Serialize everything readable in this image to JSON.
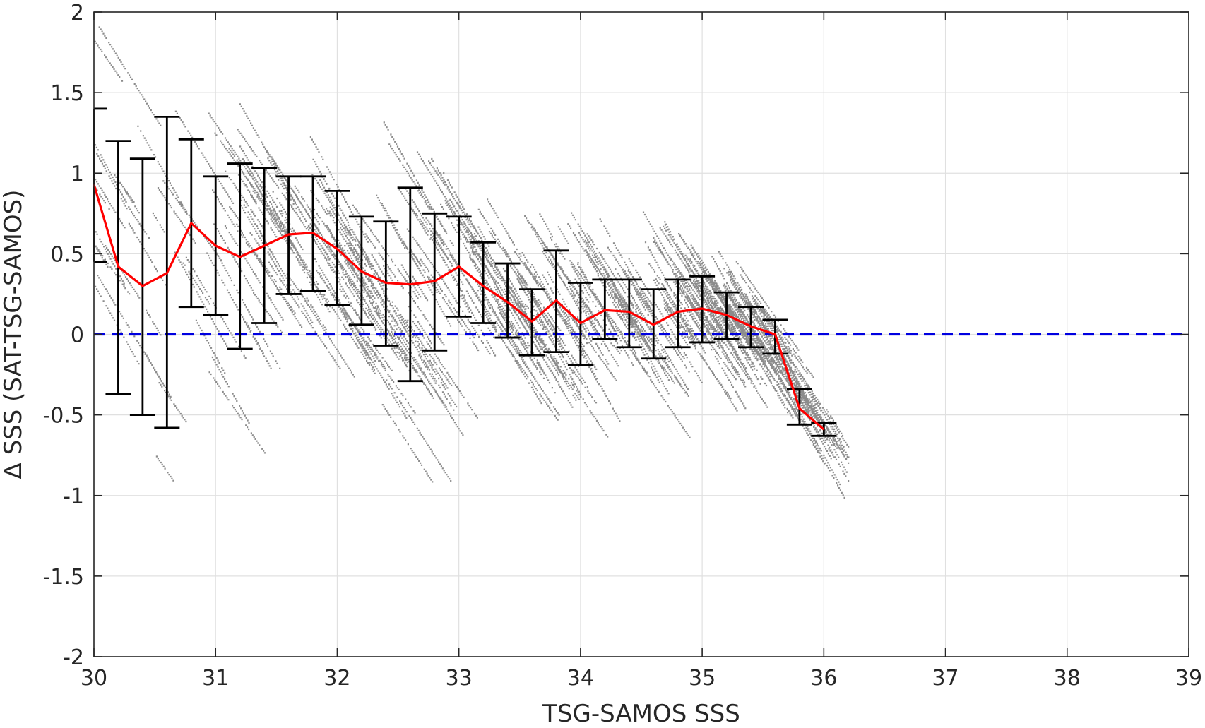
{
  "chart_data": {
    "type": "scatter",
    "title": "",
    "xlabel": "TSG-SAMOS SSS",
    "ylabel": "Δ SSS (SAT-TSG-SAMOS)",
    "xlim": [
      30,
      39
    ],
    "ylim": [
      -2,
      2
    ],
    "x_ticks": [
      30,
      31,
      32,
      33,
      34,
      35,
      36,
      37,
      38,
      39
    ],
    "y_ticks": [
      -2,
      -1.5,
      -1,
      -0.5,
      0,
      0.5,
      1,
      1.5,
      2
    ],
    "x_tick_labels": [
      "30",
      "31",
      "32",
      "33",
      "34",
      "35",
      "36",
      "37",
      "38",
      "39"
    ],
    "y_tick_labels": [
      "-2",
      "-1.5",
      "-1",
      "-0.5",
      "0",
      "0.5",
      "1",
      "1.5",
      "2"
    ],
    "grid": true,
    "legend": "none",
    "colors": {
      "scatter": "#8c8c8c",
      "mean_line": "#ff0000",
      "error_bars": "#000000",
      "zero_line": "#0000e0",
      "grid": "#e0e0e0"
    },
    "zero_line": {
      "y": 0,
      "style": "dashed"
    },
    "binned_stats": {
      "x": [
        30.0,
        30.2,
        30.4,
        30.6,
        30.8,
        31.0,
        31.2,
        31.4,
        31.6,
        31.8,
        32.0,
        32.2,
        32.4,
        32.6,
        32.8,
        33.0,
        33.2,
        33.4,
        33.6,
        33.8,
        34.0,
        34.2,
        34.4,
        34.6,
        34.8,
        35.0,
        35.2,
        35.4,
        35.6,
        35.8,
        36.0
      ],
      "mean": [
        0.93,
        0.42,
        0.3,
        0.38,
        0.69,
        0.55,
        0.48,
        0.55,
        0.62,
        0.63,
        0.53,
        0.39,
        0.32,
        0.31,
        0.33,
        0.42,
        0.3,
        0.2,
        0.08,
        0.21,
        0.07,
        0.15,
        0.14,
        0.06,
        0.14,
        0.16,
        0.12,
        0.05,
        0.0,
        -0.46,
        -0.59
      ],
      "lower": [
        0.45,
        -0.37,
        -0.5,
        -0.58,
        0.17,
        0.12,
        -0.09,
        0.07,
        0.25,
        0.27,
        0.18,
        0.06,
        -0.07,
        -0.29,
        -0.1,
        0.11,
        0.07,
        -0.02,
        -0.13,
        -0.11,
        -0.19,
        -0.03,
        -0.08,
        -0.15,
        -0.08,
        -0.05,
        -0.03,
        -0.08,
        -0.12,
        -0.56,
        -0.63
      ]
    },
    "binned_stats_upper": [
      1.4,
      1.2,
      1.09,
      1.35,
      1.21,
      0.98,
      1.06,
      1.03,
      0.98,
      0.98,
      0.89,
      0.73,
      0.7,
      0.91,
      0.75,
      0.73,
      0.57,
      0.44,
      0.28,
      0.52,
      0.32,
      0.34,
      0.34,
      0.28,
      0.34,
      0.36,
      0.26,
      0.17,
      0.09,
      -0.34,
      -0.55
    ]
  }
}
